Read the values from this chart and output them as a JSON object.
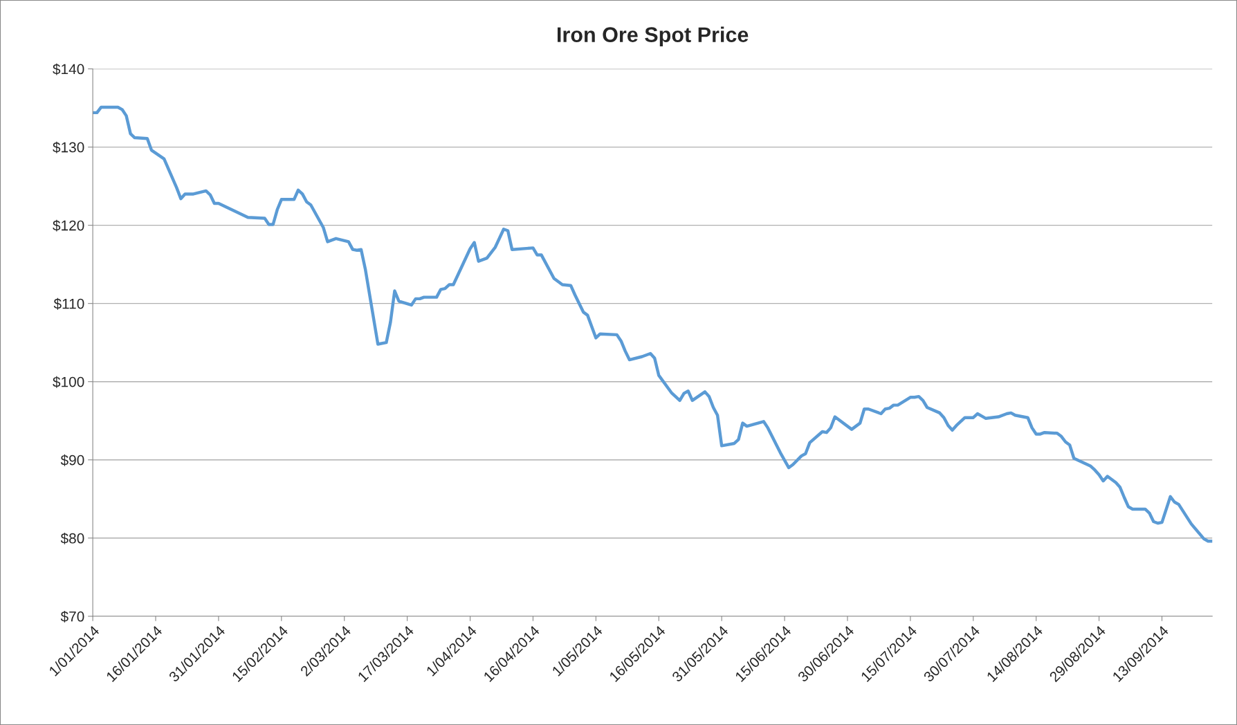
{
  "chart_data": {
    "type": "line",
    "title": "Iron Ore Spot Price",
    "x": [
      "2014-01-01",
      "2014-01-02",
      "2014-01-03",
      "2014-01-07",
      "2014-01-08",
      "2014-01-09",
      "2014-01-10",
      "2014-01-11",
      "2014-01-14",
      "2014-01-15",
      "2014-01-18",
      "2014-01-21",
      "2014-01-22",
      "2014-01-23",
      "2014-01-25",
      "2014-01-28",
      "2014-01-29",
      "2014-01-30",
      "2014-01-31",
      "2014-02-07",
      "2014-02-11",
      "2014-02-12",
      "2014-02-13",
      "2014-02-14",
      "2014-02-15",
      "2014-02-18",
      "2014-02-19",
      "2014-02-20",
      "2014-02-21",
      "2014-02-22",
      "2014-02-25",
      "2014-02-26",
      "2014-02-28",
      "2014-03-03",
      "2014-03-04",
      "2014-03-05",
      "2014-03-06",
      "2014-03-07",
      "2014-03-10",
      "2014-03-12",
      "2014-03-13",
      "2014-03-14",
      "2014-03-15",
      "2014-03-18",
      "2014-03-19",
      "2014-03-20",
      "2014-03-21",
      "2014-03-24",
      "2014-03-25",
      "2014-03-26",
      "2014-03-27",
      "2014-03-28",
      "2014-04-01",
      "2014-04-02",
      "2014-04-03",
      "2014-04-05",
      "2014-04-07",
      "2014-04-09",
      "2014-04-10",
      "2014-04-11",
      "2014-04-16",
      "2014-04-17",
      "2014-04-18",
      "2014-04-21",
      "2014-04-23",
      "2014-04-25",
      "2014-04-26",
      "2014-04-28",
      "2014-04-29",
      "2014-05-01",
      "2014-05-02",
      "2014-05-06",
      "2014-05-07",
      "2014-05-08",
      "2014-05-09",
      "2014-05-12",
      "2014-05-14",
      "2014-05-15",
      "2014-05-16",
      "2014-05-19",
      "2014-05-21",
      "2014-05-22",
      "2014-05-23",
      "2014-05-24",
      "2014-05-27",
      "2014-05-28",
      "2014-05-29",
      "2014-05-30",
      "2014-05-31",
      "2014-06-03",
      "2014-06-04",
      "2014-06-05",
      "2014-06-06",
      "2014-06-10",
      "2014-06-11",
      "2014-06-14",
      "2014-06-16",
      "2014-06-17",
      "2014-06-19",
      "2014-06-20",
      "2014-06-21",
      "2014-06-24",
      "2014-06-25",
      "2014-06-26",
      "2014-06-27",
      "2014-07-01",
      "2014-07-03",
      "2014-07-04",
      "2014-07-05",
      "2014-07-08",
      "2014-07-09",
      "2014-07-10",
      "2014-07-11",
      "2014-07-12",
      "2014-07-15",
      "2014-07-16",
      "2014-07-17",
      "2014-07-18",
      "2014-07-19",
      "2014-07-22",
      "2014-07-23",
      "2014-07-24",
      "2014-07-25",
      "2014-07-26",
      "2014-07-28",
      "2014-07-30",
      "2014-07-31",
      "2014-08-01",
      "2014-08-02",
      "2014-08-05",
      "2014-08-07",
      "2014-08-08",
      "2014-08-09",
      "2014-08-12",
      "2014-08-13",
      "2014-08-14",
      "2014-08-15",
      "2014-08-16",
      "2014-08-19",
      "2014-08-20",
      "2014-08-21",
      "2014-08-22",
      "2014-08-23",
      "2014-08-27",
      "2014-08-28",
      "2014-08-29",
      "2014-08-30",
      "2014-08-31",
      "2014-09-02",
      "2014-09-03",
      "2014-09-04",
      "2014-09-05",
      "2014-09-06",
      "2014-09-09",
      "2014-09-10",
      "2014-09-11",
      "2014-09-12",
      "2014-09-13",
      "2014-09-15",
      "2014-09-16",
      "2014-09-17",
      "2014-09-20",
      "2014-09-23",
      "2014-09-24",
      "2014-09-25"
    ],
    "series": [
      {
        "color": "#5b9bd5",
        "values": [
          134.4,
          134.4,
          135.1,
          135.1,
          134.8,
          134.0,
          131.7,
          131.2,
          131.1,
          129.6,
          128.5,
          124.8,
          123.4,
          124.0,
          124.0,
          124.4,
          123.9,
          122.8,
          122.8,
          121.0,
          120.9,
          120.1,
          120.1,
          122.0,
          123.3,
          123.3,
          124.5,
          124.0,
          123.0,
          122.6,
          119.7,
          117.9,
          118.3,
          117.9,
          116.9,
          116.8,
          116.9,
          114.4,
          104.8,
          105.0,
          107.6,
          111.6,
          110.3,
          109.8,
          110.6,
          110.6,
          110.8,
          110.8,
          111.8,
          111.9,
          112.4,
          112.4,
          117.0,
          117.8,
          115.4,
          115.8,
          117.2,
          119.5,
          119.3,
          116.9,
          117.1,
          116.2,
          116.2,
          113.2,
          112.4,
          112.3,
          111.1,
          108.9,
          108.5,
          105.6,
          106.1,
          106.0,
          105.2,
          103.9,
          102.8,
          103.2,
          103.6,
          103.0,
          100.8,
          98.6,
          97.6,
          98.5,
          98.8,
          97.6,
          98.7,
          98.1,
          96.7,
          95.7,
          91.8,
          92.1,
          92.6,
          94.7,
          94.3,
          94.9,
          94.1,
          90.9,
          89.0,
          89.4,
          90.5,
          90.8,
          92.2,
          93.6,
          93.5,
          94.1,
          95.5,
          93.9,
          94.7,
          96.5,
          96.5,
          95.9,
          96.5,
          96.6,
          97.0,
          97.0,
          98.0,
          98.0,
          98.1,
          97.6,
          96.7,
          96.0,
          95.4,
          94.4,
          93.8,
          94.4,
          95.4,
          95.4,
          95.9,
          95.6,
          95.3,
          95.5,
          95.9,
          96.0,
          95.7,
          95.4,
          94.1,
          93.3,
          93.3,
          93.5,
          93.4,
          93.0,
          92.3,
          91.9,
          90.2,
          89.2,
          88.7,
          88.1,
          87.3,
          87.9,
          87.1,
          86.5,
          85.2,
          84.0,
          83.7,
          83.7,
          83.2,
          82.1,
          81.9,
          82.0,
          85.3,
          84.6,
          84.3,
          81.8,
          79.9,
          79.6,
          79.6
        ]
      }
    ],
    "xlim": [
      "2014-01-01",
      "2014-09-25"
    ],
    "xticks": [
      {
        "value": "2014-01-01",
        "label": "1/01/2014"
      },
      {
        "value": "2014-01-16",
        "label": "16/01/2014"
      },
      {
        "value": "2014-01-31",
        "label": "31/01/2014"
      },
      {
        "value": "2014-02-15",
        "label": "15/02/2014"
      },
      {
        "value": "2014-03-02",
        "label": "2/03/2014"
      },
      {
        "value": "2014-03-17",
        "label": "17/03/2014"
      },
      {
        "value": "2014-04-01",
        "label": "1/04/2014"
      },
      {
        "value": "2014-04-16",
        "label": "16/04/2014"
      },
      {
        "value": "2014-05-01",
        "label": "1/05/2014"
      },
      {
        "value": "2014-05-16",
        "label": "16/05/2014"
      },
      {
        "value": "2014-05-31",
        "label": "31/05/2014"
      },
      {
        "value": "2014-06-15",
        "label": "15/06/2014"
      },
      {
        "value": "2014-06-30",
        "label": "30/06/2014"
      },
      {
        "value": "2014-07-15",
        "label": "15/07/2014"
      },
      {
        "value": "2014-07-30",
        "label": "30/07/2014"
      },
      {
        "value": "2014-08-14",
        "label": "14/08/2014"
      },
      {
        "value": "2014-08-29",
        "label": "29/08/2014"
      },
      {
        "value": "2014-09-13",
        "label": "13/09/2014"
      }
    ],
    "ylim": [
      70,
      140
    ],
    "yticks": [
      {
        "value": 70,
        "label": "$70"
      },
      {
        "value": 80,
        "label": "$80"
      },
      {
        "value": 90,
        "label": "$90"
      },
      {
        "value": 100,
        "label": "$100"
      },
      {
        "value": 110,
        "label": "$110"
      },
      {
        "value": 120,
        "label": "$120"
      },
      {
        "value": 130,
        "label": "$130"
      },
      {
        "value": 140,
        "label": "$140"
      }
    ],
    "grid": "y",
    "legend": false,
    "marker": "none",
    "line_style": "solid"
  }
}
